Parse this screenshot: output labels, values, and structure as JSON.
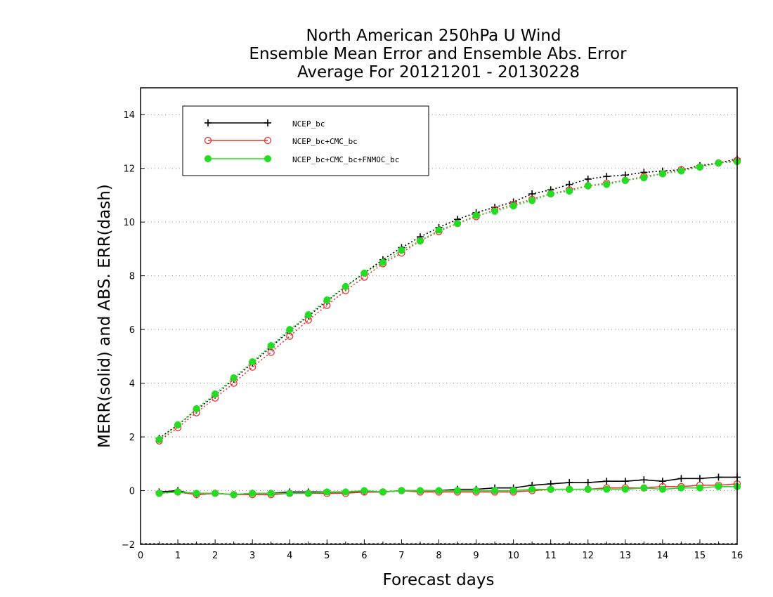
{
  "chart_data": {
    "type": "line",
    "title": [
      "North American 250hPa U Wind",
      "Ensemble Mean Error and Ensemble Abs. Error",
      "Average For 20121201 - 20130228"
    ],
    "xlabel": "Forecast days",
    "ylabel": "MERR(solid) and ABS. ERR(dash)",
    "xlim": [
      0,
      16
    ],
    "ylim": [
      -2,
      15
    ],
    "xticks": [
      0,
      1,
      2,
      3,
      4,
      5,
      6,
      7,
      8,
      9,
      10,
      11,
      12,
      13,
      14,
      15,
      16
    ],
    "xtick_labels": [
      "0",
      "1",
      "2",
      "3",
      "4",
      "5",
      "6",
      "7",
      "8",
      "9",
      "10",
      "11",
      "12",
      "13",
      "14",
      "15",
      "16"
    ],
    "yticks": [
      -2,
      0,
      2,
      4,
      6,
      8,
      10,
      12,
      14
    ],
    "ytick_labels": [
      "−2",
      "0",
      "2",
      "4",
      "6",
      "8",
      "10",
      "12",
      "14"
    ],
    "grid": "horizontal dotted",
    "legend_position": "top-left",
    "x": [
      0.5,
      1.0,
      1.5,
      2.0,
      2.5,
      3.0,
      3.5,
      4.0,
      4.5,
      5.0,
      5.5,
      6.0,
      6.5,
      7.0,
      7.5,
      8.0,
      8.5,
      9.0,
      9.5,
      10.0,
      10.5,
      11.0,
      11.5,
      12.0,
      12.5,
      13.0,
      13.5,
      14.0,
      14.5,
      15.0,
      15.5,
      16.0
    ],
    "series": [
      {
        "name": "NCEP_bc",
        "color": "#000000",
        "marker": "plus",
        "abs_err": [
          1.95,
          2.45,
          3.0,
          3.55,
          4.15,
          4.75,
          5.35,
          5.95,
          6.5,
          7.05,
          7.6,
          8.1,
          8.6,
          9.05,
          9.45,
          9.8,
          10.1,
          10.35,
          10.55,
          10.75,
          11.05,
          11.2,
          11.4,
          11.6,
          11.7,
          11.75,
          11.85,
          11.9,
          11.95,
          12.1,
          12.2,
          12.35
        ],
        "mean_err": [
          -0.05,
          0.0,
          -0.15,
          -0.1,
          -0.15,
          -0.1,
          -0.1,
          -0.05,
          -0.05,
          -0.05,
          -0.05,
          -0.05,
          -0.05,
          0.0,
          0.0,
          0.0,
          0.05,
          0.05,
          0.1,
          0.1,
          0.2,
          0.25,
          0.3,
          0.3,
          0.35,
          0.35,
          0.4,
          0.35,
          0.45,
          0.45,
          0.5,
          0.5
        ]
      },
      {
        "name": "NCEP_bc+CMC_bc",
        "color": "#ee3333",
        "marker": "open-circle",
        "abs_err": [
          1.85,
          2.35,
          2.9,
          3.45,
          4.0,
          4.6,
          5.15,
          5.75,
          6.35,
          6.9,
          7.45,
          7.95,
          8.45,
          8.85,
          9.3,
          9.65,
          9.95,
          10.2,
          10.45,
          10.65,
          10.85,
          11.05,
          11.2,
          11.35,
          11.45,
          11.55,
          11.7,
          11.8,
          11.95,
          12.05,
          12.2,
          12.3
        ],
        "mean_err": [
          -0.1,
          -0.05,
          -0.15,
          -0.1,
          -0.15,
          -0.15,
          -0.15,
          -0.1,
          -0.1,
          -0.1,
          -0.1,
          -0.05,
          -0.05,
          0.0,
          -0.05,
          -0.05,
          -0.05,
          -0.05,
          -0.05,
          -0.05,
          0.0,
          0.05,
          0.05,
          0.05,
          0.1,
          0.1,
          0.1,
          0.15,
          0.15,
          0.2,
          0.2,
          0.25
        ]
      },
      {
        "name": "NCEP_bc+CMC_bc+FNMOC_bc",
        "color": "#22dd22",
        "marker": "filled-circle",
        "abs_err": [
          1.9,
          2.45,
          3.05,
          3.6,
          4.2,
          4.8,
          5.4,
          6.0,
          6.55,
          7.1,
          7.6,
          8.1,
          8.5,
          8.95,
          9.3,
          9.7,
          9.95,
          10.25,
          10.4,
          10.6,
          10.8,
          11.05,
          11.15,
          11.35,
          11.4,
          11.55,
          11.65,
          11.8,
          11.9,
          12.05,
          12.2,
          12.25
        ],
        "mean_err": [
          -0.1,
          -0.05,
          -0.1,
          -0.1,
          -0.15,
          -0.1,
          -0.1,
          -0.1,
          -0.1,
          -0.05,
          -0.05,
          0.0,
          -0.05,
          0.0,
          0.0,
          0.0,
          0.0,
          0.0,
          0.0,
          0.0,
          0.05,
          0.05,
          0.05,
          0.05,
          0.05,
          0.05,
          0.1,
          0.05,
          0.1,
          0.1,
          0.15,
          0.15
        ]
      }
    ]
  }
}
